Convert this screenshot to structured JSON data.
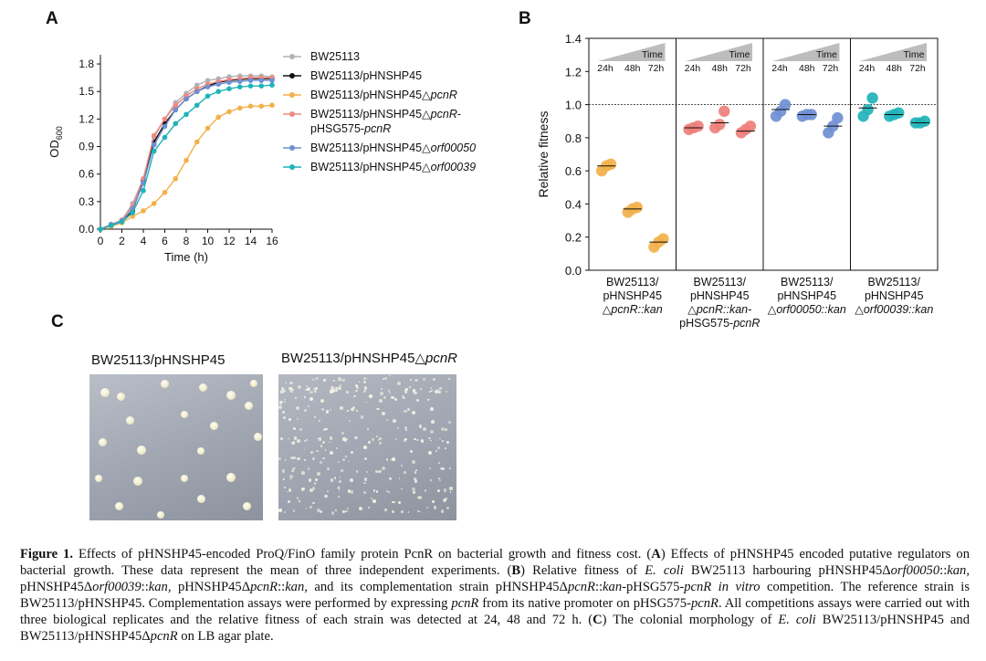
{
  "panels": {
    "a": "A",
    "b": "B",
    "c": "C"
  },
  "chart_data": [
    {
      "type": "line",
      "panel": "A",
      "xlabel": "Time (h)",
      "ylabel": "OD",
      "ylabel_sub": "600",
      "xlim": [
        0,
        16
      ],
      "ylim": [
        0,
        1.9
      ],
      "xticks": [
        0,
        2,
        4,
        6,
        8,
        10,
        12,
        14,
        16
      ],
      "yticks": [
        0.0,
        0.3,
        0.6,
        0.9,
        1.2,
        1.5,
        1.8
      ],
      "ytick_labels": [
        "0.0",
        "0.3",
        "0.6",
        "0.9",
        "1.2",
        "1.5",
        "1.8"
      ],
      "legend_position": "right",
      "x": [
        0,
        1,
        2,
        3,
        4,
        5,
        6,
        7,
        8,
        9,
        10,
        11,
        12,
        13,
        14,
        15,
        16
      ],
      "series": [
        {
          "name": "BW25113",
          "color": "#b3b3b3",
          "values": [
            0.0,
            0.05,
            0.1,
            0.28,
            0.55,
            1.0,
            1.2,
            1.38,
            1.48,
            1.57,
            1.62,
            1.64,
            1.66,
            1.67,
            1.67,
            1.67,
            1.66
          ]
        },
        {
          "name": "BW25113/pHNSHP45",
          "color": "#111111",
          "values": [
            0.0,
            0.05,
            0.09,
            0.2,
            0.53,
            0.95,
            1.15,
            1.3,
            1.42,
            1.5,
            1.56,
            1.6,
            1.62,
            1.63,
            1.64,
            1.64,
            1.64
          ]
        },
        {
          "name": "BW25113/pHNSHP45△pcnR",
          "color": "#f2b14a",
          "values": [
            0.0,
            0.03,
            0.07,
            0.14,
            0.2,
            0.28,
            0.4,
            0.55,
            0.75,
            0.95,
            1.1,
            1.22,
            1.28,
            1.32,
            1.34,
            1.34,
            1.35
          ]
        },
        {
          "name": "BW25113/pHNSHP45△pcnR-pHSG575-pcnR",
          "color": "#ef8a82",
          "values": [
            0.0,
            0.05,
            0.1,
            0.25,
            0.55,
            1.02,
            1.2,
            1.35,
            1.45,
            1.53,
            1.58,
            1.61,
            1.63,
            1.64,
            1.65,
            1.65,
            1.65
          ]
        },
        {
          "name": "BW25113/pHNSHP45△orf00050",
          "color": "#6f8fd2",
          "values": [
            0.0,
            0.05,
            0.09,
            0.22,
            0.5,
            0.92,
            1.12,
            1.3,
            1.42,
            1.5,
            1.55,
            1.58,
            1.6,
            1.61,
            1.62,
            1.62,
            1.62
          ]
        },
        {
          "name": "BW25113/pHNSHP45△orf00039",
          "color": "#1fb3b8",
          "values": [
            0.0,
            0.04,
            0.08,
            0.18,
            0.42,
            0.85,
            1.0,
            1.15,
            1.25,
            1.35,
            1.45,
            1.5,
            1.53,
            1.55,
            1.56,
            1.56,
            1.57
          ]
        }
      ],
      "legend": [
        {
          "parts": [
            {
              "t": "BW25113",
              "i": false
            }
          ]
        },
        {
          "parts": [
            {
              "t": "BW25113/pHNSHP45",
              "i": false
            }
          ]
        },
        {
          "parts": [
            {
              "t": "BW25113/pHNSHP45△",
              "i": false
            },
            {
              "t": "pcnR",
              "i": true
            }
          ]
        },
        {
          "parts": [
            {
              "t": "BW25113/pHNSHP45△",
              "i": false
            },
            {
              "t": "pcnR",
              "i": true
            },
            {
              "t": "-",
              "i": false
            }
          ],
          "line2": [
            {
              "t": "pHSG575-",
              "i": false
            },
            {
              "t": "pcnR",
              "i": true
            }
          ]
        },
        {
          "parts": [
            {
              "t": "BW25113/pHNSHP45△",
              "i": false
            },
            {
              "t": "orf00050",
              "i": true
            }
          ]
        },
        {
          "parts": [
            {
              "t": "BW25113/pHNSHP45△",
              "i": false
            },
            {
              "t": "orf00039",
              "i": true
            }
          ]
        }
      ]
    },
    {
      "type": "scatter",
      "panel": "B",
      "ylabel": "Relative fitness",
      "ylim": [
        0,
        1.4
      ],
      "yticks": [
        0.0,
        0.2,
        0.4,
        0.6,
        0.8,
        1.0,
        1.2,
        1.4
      ],
      "ytick_labels": [
        "0.0",
        "0.2",
        "0.4",
        "0.6",
        "0.8",
        "1.0",
        "1.2",
        "1.4"
      ],
      "reference_line": 1.0,
      "time_label": "Time",
      "time_points": [
        "24h",
        "48h",
        "72h"
      ],
      "groups": [
        {
          "color": "#f2b14a",
          "label": [
            [
              {
                "t": "BW25113/",
                "i": false
              }
            ],
            [
              {
                "t": "pHNSHP45",
                "i": false
              }
            ],
            [
              {
                "t": "△",
                "i": false
              },
              {
                "t": "pcnR::kan",
                "i": true
              }
            ]
          ],
          "points": [
            [
              0.6,
              0.63,
              0.64
            ],
            [
              0.35,
              0.37,
              0.38
            ],
            [
              0.14,
              0.17,
              0.19
            ]
          ],
          "means": [
            0.63,
            0.37,
            0.17
          ]
        },
        {
          "color": "#ef7f7b",
          "label": [
            [
              {
                "t": "BW25113/",
                "i": false
              }
            ],
            [
              {
                "t": "pHNSHP45",
                "i": false
              }
            ],
            [
              {
                "t": "△",
                "i": false
              },
              {
                "t": "pcnR::kan-",
                "i": true
              }
            ],
            [
              {
                "t": "pHSG575-",
                "i": false
              },
              {
                "t": "pcnR",
                "i": true
              }
            ]
          ],
          "points": [
            [
              0.85,
              0.86,
              0.87
            ],
            [
              0.86,
              0.88,
              0.96
            ],
            [
              0.83,
              0.85,
              0.87
            ]
          ],
          "means": [
            0.86,
            0.89,
            0.84
          ]
        },
        {
          "color": "#6f8fd2",
          "label": [
            [
              {
                "t": "BW25113/",
                "i": false
              }
            ],
            [
              {
                "t": "pHNSHP45",
                "i": false
              }
            ],
            [
              {
                "t": "△",
                "i": false
              },
              {
                "t": "orf00050::kan",
                "i": true
              }
            ]
          ],
          "points": [
            [
              0.93,
              0.96,
              1.0
            ],
            [
              0.93,
              0.94,
              0.94
            ],
            [
              0.83,
              0.87,
              0.92
            ]
          ],
          "means": [
            0.97,
            0.94,
            0.87
          ]
        },
        {
          "color": "#1fb3b8",
          "label": [
            [
              {
                "t": "BW25113/",
                "i": false
              }
            ],
            [
              {
                "t": "pHNSHP45",
                "i": false
              }
            ],
            [
              {
                "t": "△",
                "i": false
              },
              {
                "t": "orf00039::kan",
                "i": true
              }
            ]
          ],
          "points": [
            [
              0.93,
              0.97,
              1.04
            ],
            [
              0.93,
              0.94,
              0.95
            ],
            [
              0.89,
              0.89,
              0.9
            ]
          ],
          "means": [
            0.98,
            0.94,
            0.89
          ]
        }
      ]
    }
  ],
  "plates": {
    "left_label": "BW25113/pHNSHP45",
    "right_label_prefix": "BW25113/pHNSHP45△",
    "right_label_italic": "pcnR"
  },
  "caption": [
    {
      "t": "Figure 1.",
      "b": true
    },
    {
      "t": "  Effects of pHNSHP45-encoded ProQ/FinO family protein PcnR on bacterial growth and fitness cost. ("
    },
    {
      "t": "A",
      "b": true
    },
    {
      "t": ") Effects of pHNSHP45 encoded putative regulators on bacterial growth. These data represent the mean of three independent experiments. ("
    },
    {
      "t": "B",
      "b": true
    },
    {
      "t": ") Relative fitness of "
    },
    {
      "t": "E. coli",
      "i": true
    },
    {
      "t": " BW25113 harbouring pHNSHP45Δ"
    },
    {
      "t": "orf00050",
      "i": true
    },
    {
      "t": "::"
    },
    {
      "t": "kan",
      "i": true
    },
    {
      "t": ", pHNSHP45Δ"
    },
    {
      "t": "orf00039",
      "i": true
    },
    {
      "t": "::"
    },
    {
      "t": "kan,",
      "i": true
    },
    {
      "t": " pHNSHP45Δ"
    },
    {
      "t": "pcnR",
      "i": true
    },
    {
      "t": "::"
    },
    {
      "t": "kan",
      "i": true
    },
    {
      "t": ", and its complementation strain pHNSHP45Δ"
    },
    {
      "t": "pcnR",
      "i": true
    },
    {
      "t": "::"
    },
    {
      "t": "kan",
      "i": true
    },
    {
      "t": "-pHSG575-"
    },
    {
      "t": "pcnR in vitro",
      "i": true
    },
    {
      "t": " competition. The reference strain is BW25113/pHNSHP45. Complementation assays were performed by expressing "
    },
    {
      "t": "pcnR",
      "i": true
    },
    {
      "t": " from its native promoter on pHSG575-"
    },
    {
      "t": "pcnR",
      "i": true
    },
    {
      "t": ". All competitions assays were carried out with three biological replicates and the relative fitness of each strain was detected at 24, 48 and 72 h. ("
    },
    {
      "t": "C",
      "b": true
    },
    {
      "t": ") The colonial morphology of "
    },
    {
      "t": "E. coli",
      "i": true
    },
    {
      "t": " BW25113/pHNSHP45 and BW25113/pHNSHP45Δ"
    },
    {
      "t": "pcnR",
      "i": true
    },
    {
      "t": " on LB agar plate."
    }
  ]
}
